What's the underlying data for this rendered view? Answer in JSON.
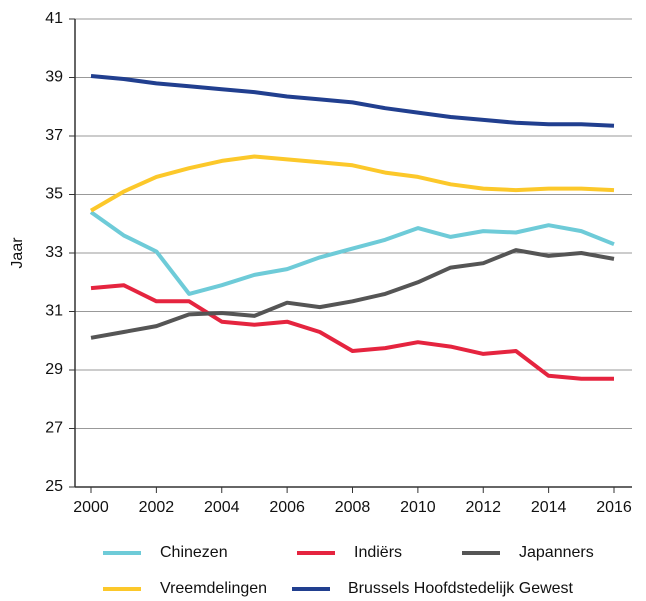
{
  "chart_data": {
    "type": "line",
    "y_label": "Jaar",
    "x": [
      2000,
      2001,
      2002,
      2003,
      2004,
      2005,
      2006,
      2007,
      2008,
      2009,
      2010,
      2011,
      2012,
      2013,
      2014,
      2015,
      2016
    ],
    "xlim": [
      2000,
      2016
    ],
    "xticks": [
      2000,
      2002,
      2004,
      2006,
      2008,
      2010,
      2012,
      2014,
      2016
    ],
    "ylim": [
      25,
      41
    ],
    "yticks": [
      25,
      27,
      29,
      31,
      33,
      35,
      37,
      39,
      41
    ],
    "grid": true,
    "legend": "bottom",
    "series": [
      {
        "name": "Chinezen",
        "color": "#6ecbd8",
        "values": [
          34.4,
          33.6,
          33.05,
          31.6,
          31.9,
          32.25,
          32.45,
          32.85,
          33.15,
          33.45,
          33.85,
          33.55,
          33.75,
          33.7,
          33.95,
          33.75,
          33.3
        ]
      },
      {
        "name": "Indiërs",
        "color": "#e5243f",
        "values": [
          31.8,
          31.9,
          31.35,
          31.35,
          30.65,
          30.55,
          30.65,
          30.3,
          29.65,
          29.75,
          29.95,
          29.8,
          29.55,
          29.65,
          28.8,
          28.7,
          28.7
        ]
      },
      {
        "name": "Japanners",
        "color": "#555555",
        "values": [
          30.1,
          30.3,
          30.5,
          30.9,
          30.95,
          30.85,
          31.3,
          31.15,
          31.35,
          31.6,
          32.0,
          32.5,
          32.65,
          33.1,
          32.9,
          33.0,
          32.8
        ]
      },
      {
        "name": "Vreemdelingen",
        "color": "#fcc82a",
        "values": [
          34.45,
          35.1,
          35.6,
          35.9,
          36.15,
          36.3,
          36.2,
          36.1,
          36.0,
          35.75,
          35.6,
          35.35,
          35.2,
          35.15,
          35.2,
          35.2,
          35.15
        ]
      },
      {
        "name": "Brussels Hoofdstedelijk Gewest",
        "color": "#213f8f",
        "values": [
          39.05,
          38.95,
          38.8,
          38.7,
          38.6,
          38.5,
          38.35,
          38.25,
          38.15,
          37.95,
          37.8,
          37.65,
          37.55,
          37.45,
          37.4,
          37.4,
          37.35
        ]
      }
    ]
  }
}
